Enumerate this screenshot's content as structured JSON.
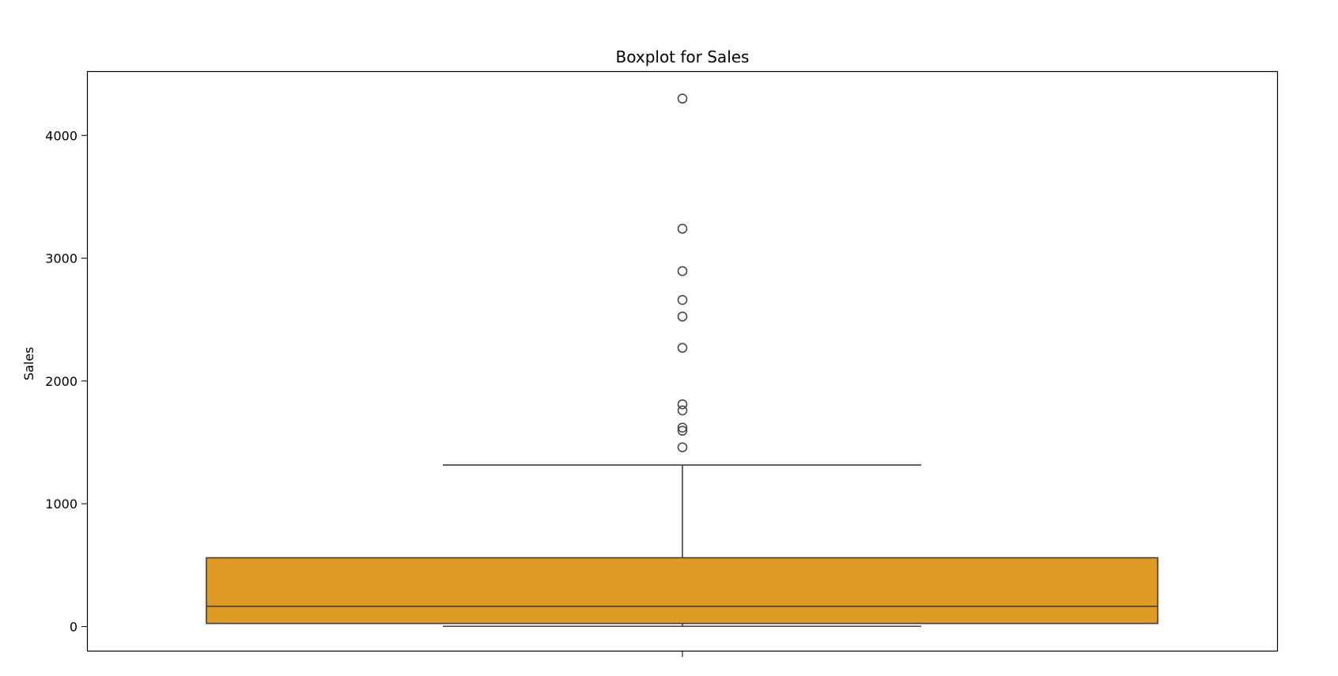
{
  "chart_data": {
    "type": "box",
    "title": "Boxplot for Sales",
    "xlabel": "",
    "ylabel": "Sales",
    "ylim": [
      -200,
      4520
    ],
    "yticks": [
      0,
      1000,
      2000,
      3000,
      4000
    ],
    "grid": false,
    "legend": "none",
    "box_color": "#e09b24",
    "line_color": "#3f3f3f",
    "series": [
      {
        "whisker_low": 2,
        "q1": 25,
        "median": 165,
        "q3": 560,
        "whisker_high": 1315,
        "outliers": [
          1460,
          1595,
          1620,
          1760,
          1810,
          2270,
          2525,
          2660,
          2895,
          3240,
          4300
        ]
      }
    ]
  }
}
